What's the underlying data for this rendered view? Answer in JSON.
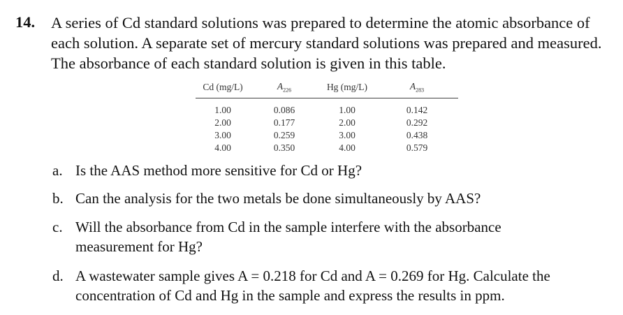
{
  "problem": {
    "number": "14.",
    "text": "A series of Cd standard solutions was prepared to determine the atomic absorbance of each solution. A separate set of mercury standard solutions was prepared and measured. The absorbance of each standard solution is given in this table."
  },
  "table": {
    "headers": [
      {
        "main": "Cd (mg/L)",
        "sub": ""
      },
      {
        "main": "A",
        "sub": "226"
      },
      {
        "main": "Hg (mg/L)",
        "sub": ""
      },
      {
        "main": "A",
        "sub": "283"
      }
    ],
    "rows": [
      [
        "1.00",
        "0.086",
        "1.00",
        "0.142"
      ],
      [
        "2.00",
        "0.177",
        "2.00",
        "0.292"
      ],
      [
        "3.00",
        "0.259",
        "3.00",
        "0.438"
      ],
      [
        "4.00",
        "0.350",
        "4.00",
        "0.579"
      ]
    ]
  },
  "questions": [
    {
      "label": "a.",
      "text": "Is the AAS method more sensitive for Cd or Hg?"
    },
    {
      "label": "b.",
      "text": "Can the analysis for the two metals be done simultaneously by AAS?"
    },
    {
      "label": "c.",
      "text": "Will the absorbance from Cd in the sample interfere with the absorbance measurement for Hg?"
    },
    {
      "label": "d.",
      "text": "A wastewater sample gives A = 0.218 for Cd and A = 0.269 for Hg. Calculate the concentration of Cd and Hg in the sample and express the results in ppm."
    }
  ]
}
